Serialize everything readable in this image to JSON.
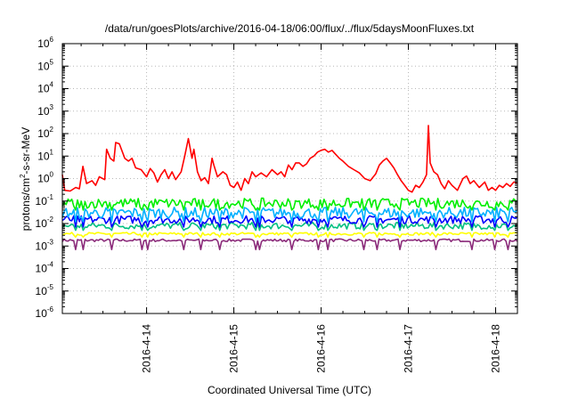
{
  "chart_data": {
    "type": "line",
    "title": "/data/run/goesPlots/archive/2016-04-18/06:00/flux/../flux/5daysMoonFluxes.txt",
    "xlabel": "Coordinated Universal Time (UTC)",
    "ylabel": "protons/cm²-s-sr-MeV",
    "ylabel_parts": {
      "pre": "protons/cm",
      "sup": "2",
      "post": "-s-sr-MeV"
    },
    "yscale": "log",
    "ylim": [
      1e-06,
      1000000.0
    ],
    "y_ticks": [
      {
        "base": "10",
        "exp": "-6"
      },
      {
        "base": "10",
        "exp": "-5"
      },
      {
        "base": "10",
        "exp": "-4"
      },
      {
        "base": "10",
        "exp": "-3"
      },
      {
        "base": "10",
        "exp": "-2"
      },
      {
        "base": "10",
        "exp": "-1"
      },
      {
        "base": "10",
        "exp": "0"
      },
      {
        "base": "10",
        "exp": "1"
      },
      {
        "base": "10",
        "exp": "2"
      },
      {
        "base": "10",
        "exp": "3"
      },
      {
        "base": "10",
        "exp": "4"
      },
      {
        "base": "10",
        "exp": "5"
      },
      {
        "base": "10",
        "exp": "6"
      }
    ],
    "xlim": [
      "2016-04-13T00:50",
      "2016-04-18T06:00"
    ],
    "x_ticks": [
      "2016-4-14",
      "2016-4-15",
      "2016-4-16",
      "2016-4-17",
      "2016-4-18"
    ],
    "grid": true,
    "series": [
      {
        "color": "#ff0000",
        "points": [
          [
            "2016-04-13T00:50",
            1.5
          ],
          [
            "2016-04-13T01:30",
            0.3
          ],
          [
            "2016-04-13T03:00",
            0.28
          ],
          [
            "2016-04-13T04:30",
            0.4
          ],
          [
            "2016-04-13T05:30",
            0.35
          ],
          [
            "2016-04-13T06:30",
            3.5
          ],
          [
            "2016-04-13T07:30",
            0.6
          ],
          [
            "2016-04-13T09:00",
            0.8
          ],
          [
            "2016-04-13T10:00",
            0.5
          ],
          [
            "2016-04-13T11:00",
            1.2
          ],
          [
            "2016-04-13T12:30",
            0.9
          ],
          [
            "2016-04-13T13:00",
            20
          ],
          [
            "2016-04-13T14:00",
            8
          ],
          [
            "2016-04-13T15:00",
            6
          ],
          [
            "2016-04-13T15:30",
            40
          ],
          [
            "2016-04-13T16:30",
            35
          ],
          [
            "2016-04-13T18:00",
            8
          ],
          [
            "2016-04-13T19:00",
            6
          ],
          [
            "2016-04-13T20:00",
            8
          ],
          [
            "2016-04-13T21:00",
            3
          ],
          [
            "2016-04-13T22:30",
            2.5
          ],
          [
            "2016-04-14T00:00",
            1.2
          ],
          [
            "2016-04-14T01:00",
            2.8
          ],
          [
            "2016-04-14T02:00",
            1.8
          ],
          [
            "2016-04-14T03:00",
            0.7
          ],
          [
            "2016-04-14T04:00",
            1.5
          ],
          [
            "2016-04-14T05:00",
            2.5
          ],
          [
            "2016-04-14T06:00",
            1.0
          ],
          [
            "2016-04-14T07:00",
            2.0
          ],
          [
            "2016-04-14T08:00",
            0.9
          ],
          [
            "2016-04-14T09:30",
            2.0
          ],
          [
            "2016-04-14T10:30",
            10
          ],
          [
            "2016-04-14T11:30",
            60
          ],
          [
            "2016-04-14T12:30",
            8
          ],
          [
            "2016-04-14T13:00",
            20
          ],
          [
            "2016-04-14T14:00",
            2.0
          ],
          [
            "2016-04-14T15:00",
            0.8
          ],
          [
            "2016-04-14T16:00",
            1.1
          ],
          [
            "2016-04-14T17:00",
            0.6
          ],
          [
            "2016-04-14T18:00",
            8
          ],
          [
            "2016-04-14T18:30",
            4
          ],
          [
            "2016-04-14T19:30",
            1.2
          ],
          [
            "2016-04-14T21:00",
            2.0
          ],
          [
            "2016-04-14T22:00",
            1.5
          ],
          [
            "2016-04-14T23:00",
            0.5
          ],
          [
            "2016-04-15T00:00",
            0.4
          ],
          [
            "2016-04-15T01:00",
            0.7
          ],
          [
            "2016-04-15T02:00",
            0.3
          ],
          [
            "2016-04-15T03:00",
            1.0
          ],
          [
            "2016-04-15T04:00",
            0.6
          ],
          [
            "2016-04-15T05:00",
            2.0
          ],
          [
            "2016-04-15T06:00",
            1.2
          ],
          [
            "2016-04-15T07:30",
            1.8
          ],
          [
            "2016-04-15T09:00",
            1.2
          ],
          [
            "2016-04-15T10:30",
            2.5
          ],
          [
            "2016-04-15T12:00",
            1.5
          ],
          [
            "2016-04-15T13:00",
            2.0
          ],
          [
            "2016-04-15T14:00",
            1.2
          ],
          [
            "2016-04-15T15:00",
            4
          ],
          [
            "2016-04-15T16:00",
            2.5
          ],
          [
            "2016-04-15T17:00",
            5
          ],
          [
            "2016-04-15T18:00",
            5
          ],
          [
            "2016-04-15T19:00",
            3.5
          ],
          [
            "2016-04-15T20:00",
            4.5
          ],
          [
            "2016-04-15T21:00",
            8
          ],
          [
            "2016-04-15T22:00",
            10
          ],
          [
            "2016-04-15T23:00",
            15
          ],
          [
            "2016-04-16T00:00",
            18
          ],
          [
            "2016-04-16T01:00",
            20
          ],
          [
            "2016-04-16T02:00",
            15
          ],
          [
            "2016-04-16T03:00",
            18
          ],
          [
            "2016-04-16T04:00",
            12
          ],
          [
            "2016-04-16T05:00",
            8
          ],
          [
            "2016-04-16T06:00",
            6
          ],
          [
            "2016-04-16T07:30",
            3.5
          ],
          [
            "2016-04-16T09:00",
            2.5
          ],
          [
            "2016-04-16T10:30",
            1.8
          ],
          [
            "2016-04-16T12:00",
            1.0
          ],
          [
            "2016-04-16T13:30",
            0.8
          ],
          [
            "2016-04-16T15:00",
            1.6
          ],
          [
            "2016-04-16T16:00",
            4
          ],
          [
            "2016-04-16T17:00",
            6
          ],
          [
            "2016-04-16T18:00",
            8
          ],
          [
            "2016-04-16T19:00",
            5
          ],
          [
            "2016-04-16T20:00",
            3
          ],
          [
            "2016-04-16T21:00",
            1.5
          ],
          [
            "2016-04-16T22:00",
            0.8
          ],
          [
            "2016-04-16T23:00",
            0.5
          ],
          [
            "2016-04-17T00:00",
            0.3
          ],
          [
            "2016-04-17T01:00",
            0.25
          ],
          [
            "2016-04-17T02:00",
            0.5
          ],
          [
            "2016-04-17T03:00",
            0.4
          ],
          [
            "2016-04-17T04:00",
            0.7
          ],
          [
            "2016-04-17T05:00",
            1.5
          ],
          [
            "2016-04-17T05:30",
            230
          ],
          [
            "2016-04-17T06:00",
            5
          ],
          [
            "2016-04-17T07:00",
            2
          ],
          [
            "2016-04-17T08:00",
            1.5
          ],
          [
            "2016-04-17T09:00",
            0.6
          ],
          [
            "2016-04-17T10:00",
            0.35
          ],
          [
            "2016-04-17T11:00",
            0.8
          ],
          [
            "2016-04-17T12:00",
            0.5
          ],
          [
            "2016-04-17T13:30",
            0.3
          ],
          [
            "2016-04-17T15:00",
            1.0
          ],
          [
            "2016-04-17T16:00",
            1.3
          ],
          [
            "2016-04-17T17:00",
            0.6
          ],
          [
            "2016-04-17T18:00",
            0.8
          ],
          [
            "2016-04-17T19:30",
            0.4
          ],
          [
            "2016-04-17T21:00",
            0.7
          ],
          [
            "2016-04-17T22:00",
            0.3
          ],
          [
            "2016-04-17T23:00",
            0.4
          ],
          [
            "2016-04-18T00:00",
            0.3
          ],
          [
            "2016-04-18T01:00",
            0.5
          ],
          [
            "2016-04-18T02:00",
            0.4
          ],
          [
            "2016-04-18T03:00",
            0.6
          ],
          [
            "2016-04-18T04:00",
            0.45
          ],
          [
            "2016-04-18T05:00",
            0.7
          ],
          [
            "2016-04-18T06:00",
            0.65
          ]
        ]
      },
      {
        "color": "#00ee00",
        "level": 0.08,
        "spread": 0.45,
        "dips": 0.04
      },
      {
        "color": "#00b0ff",
        "level": 0.03,
        "spread": 0.5,
        "dips": 0.012
      },
      {
        "color": "#0000ff",
        "level": 0.015,
        "spread": 0.35,
        "dips": 0.007
      },
      {
        "color": "#00c080",
        "level": 0.008,
        "spread": 0.3,
        "dips": 0.005
      },
      {
        "color": "#ffff00",
        "level": 0.0035,
        "spread": 0.12,
        "dips": 0.0025
      },
      {
        "color": "#8b2b7a",
        "level": 0.0018,
        "spread": 0.12,
        "dips": 0.0007
      }
    ]
  }
}
